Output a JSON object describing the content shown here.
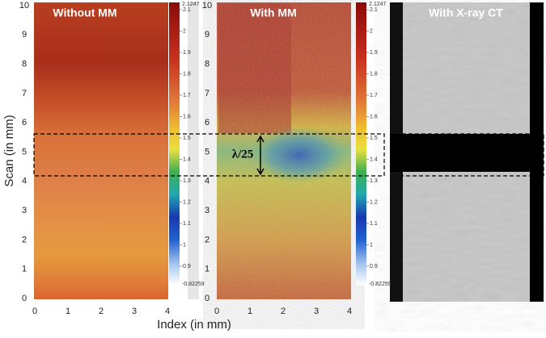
{
  "axes": {
    "y_label": "Scan (in mm)",
    "x_label": "Index (in mm)",
    "yticks": [
      0,
      1,
      2,
      3,
      4,
      5,
      6,
      7,
      8,
      9,
      10
    ],
    "xticks": [
      0,
      1,
      2,
      3,
      4
    ]
  },
  "panels": [
    {
      "title": "Without MM"
    },
    {
      "title": "With MM",
      "annotation": "λ/25"
    },
    {
      "title": "With X-ray CT"
    }
  ],
  "colorbar": {
    "max": 2.1247,
    "min": -0.82259,
    "ticks": [
      2.1,
      2,
      1.9,
      1.8,
      1.7,
      1.6,
      1.5,
      1.4,
      1.3,
      1.2,
      1.1,
      1,
      0.9
    ]
  }
}
